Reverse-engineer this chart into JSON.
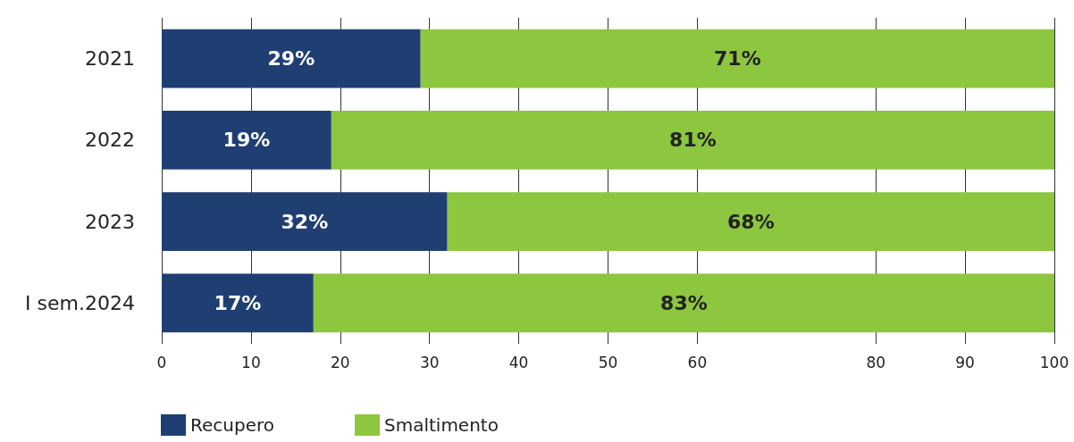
{
  "chart_data": {
    "type": "bar",
    "orientation": "horizontal",
    "stacked": true,
    "categories": [
      "2021",
      "2022",
      "2023",
      "I sem.2024"
    ],
    "series": [
      {
        "name": "Recupero",
        "color": "#1f3f73",
        "values": [
          29,
          19,
          32,
          17
        ],
        "value_labels": [
          "29%",
          "19%",
          "32%",
          "17%"
        ]
      },
      {
        "name": "Smaltimento",
        "color": "#8dc63f",
        "values": [
          71,
          81,
          68,
          83
        ],
        "value_labels": [
          "71%",
          "81%",
          "68%",
          "83%"
        ]
      }
    ],
    "xlim": [
      0,
      100
    ],
    "xticks": [
      0,
      10,
      20,
      30,
      40,
      50,
      60,
      80,
      90,
      100
    ],
    "grid": "x",
    "legend": "bottom left"
  }
}
